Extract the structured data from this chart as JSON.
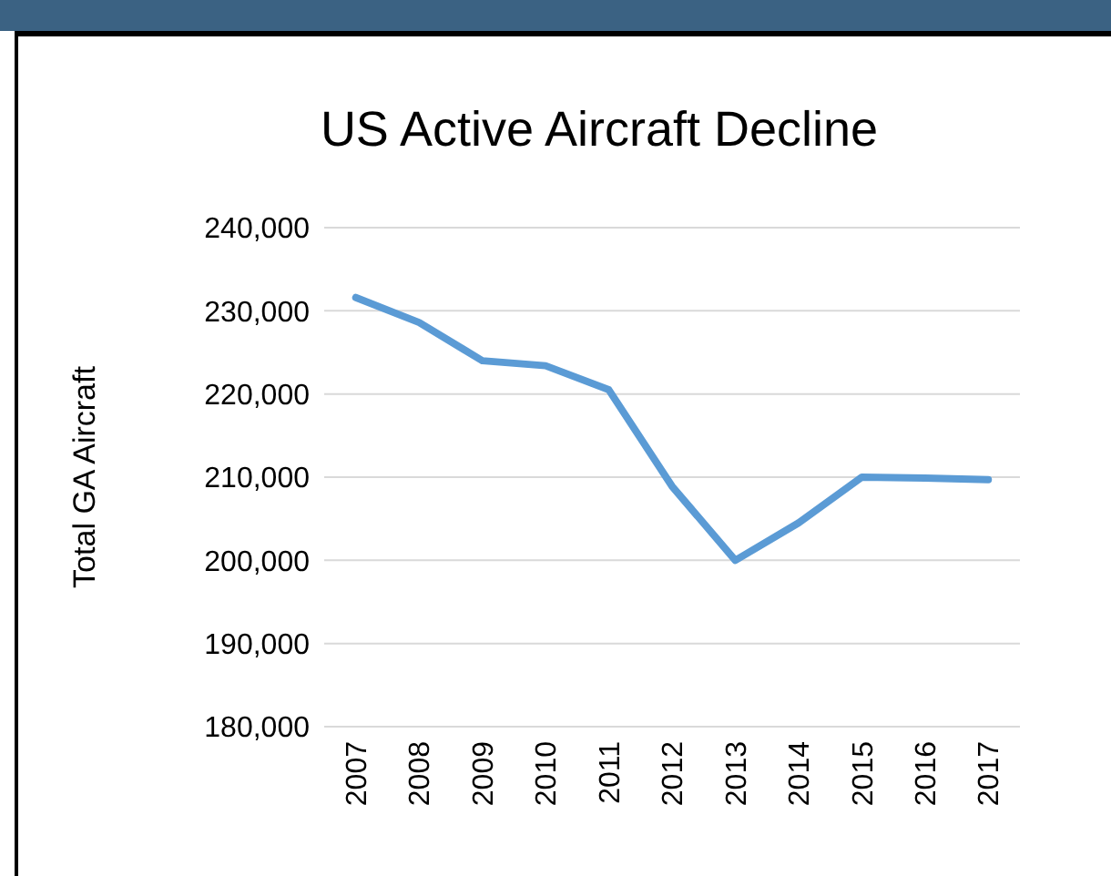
{
  "chart_data": {
    "type": "line",
    "title": "US Active Aircraft Decline",
    "ylabel": "Total GA Aircraft",
    "categories": [
      "2007",
      "2008",
      "2009",
      "2010",
      "2011",
      "2012",
      "2013",
      "2014",
      "2015",
      "2016",
      "2017"
    ],
    "series": [
      {
        "color": "#5b9bd5",
        "values": [
          231600,
          228600,
          224000,
          223400,
          220500,
          208900,
          200000,
          204500,
          210000,
          209900,
          209700
        ]
      }
    ],
    "ylim": [
      180000,
      240000
    ],
    "yticks": [
      {
        "value": 180000,
        "label": "180,000"
      },
      {
        "value": 190000,
        "label": "190,000"
      },
      {
        "value": 200000,
        "label": "200,000"
      },
      {
        "value": 210000,
        "label": "210,000"
      },
      {
        "value": 220000,
        "label": "220,000"
      },
      {
        "value": 230000,
        "label": "230,000"
      },
      {
        "value": 240000,
        "label": "240,000"
      }
    ],
    "grid": "y",
    "marker": "none",
    "line_style": "solid"
  }
}
